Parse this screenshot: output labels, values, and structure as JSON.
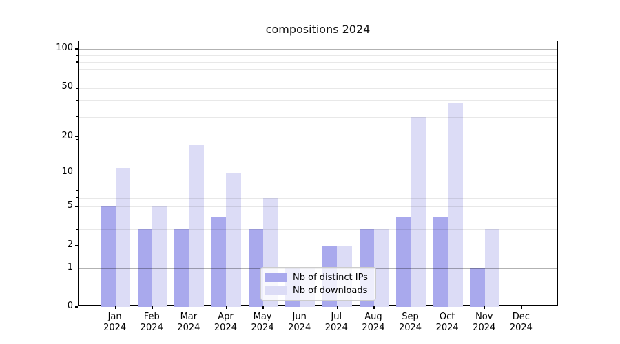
{
  "chart_data": {
    "type": "bar",
    "title": "compositions 2024",
    "categories": [
      "Jan",
      "Feb",
      "Mar",
      "Apr",
      "May",
      "Jun",
      "Jul",
      "Aug",
      "Sep",
      "Oct",
      "Nov",
      "Dec"
    ],
    "year": "2024",
    "series": [
      {
        "name": "Nb of distinct IPs",
        "color": "#a9a9ed",
        "values": [
          5,
          3,
          3,
          4,
          3,
          1,
          2,
          3,
          4,
          4,
          1,
          0
        ]
      },
      {
        "name": "Nb of downloads",
        "color": "#dcdcf6",
        "values": [
          11,
          5,
          17,
          10,
          6,
          1,
          2,
          3,
          29,
          37,
          3,
          0
        ]
      }
    ],
    "xlabel": "",
    "ylabel": "",
    "yscale": "log1p",
    "yticks": [
      0,
      1,
      2,
      5,
      10,
      20,
      50,
      100
    ],
    "ylim": [
      0,
      115
    ],
    "grid": "on",
    "grid_major_at": [
      1,
      10,
      100
    ],
    "grid_minor_at_one_plus_v": [
      3,
      4,
      5,
      6,
      7,
      8,
      9,
      20,
      30,
      40,
      50,
      60,
      70,
      80,
      90
    ],
    "legend_position": "lower center",
    "colors": {
      "background": "#ffffff",
      "axis": "#000000",
      "text": "#000000",
      "major_grid": "#b3b3b3",
      "minor_grid": "#e8e8e8",
      "legend_border": "#cccccc"
    }
  }
}
